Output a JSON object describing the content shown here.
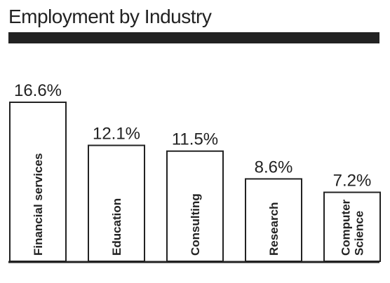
{
  "colors": {
    "text": "#222222",
    "bar_fill": "#ffffff",
    "bar_stroke": "#222222",
    "rule": "#222222"
  },
  "chart_data": {
    "type": "bar",
    "title": "Employment by Industry",
    "categories": [
      [
        "Financial services"
      ],
      [
        "Education"
      ],
      [
        "Consulting"
      ],
      [
        "Research"
      ],
      [
        "Computer",
        "Science"
      ]
    ],
    "values": [
      16.6,
      12.1,
      11.5,
      8.6,
      7.2
    ],
    "value_labels": [
      "16.6%",
      "12.1%",
      "11.5%",
      "8.6%",
      "7.2%"
    ],
    "unit": "%",
    "ylim": [
      0,
      16.6
    ],
    "grid": false,
    "legend": "none",
    "category_label_orientation": "vertical-inside-bar"
  }
}
